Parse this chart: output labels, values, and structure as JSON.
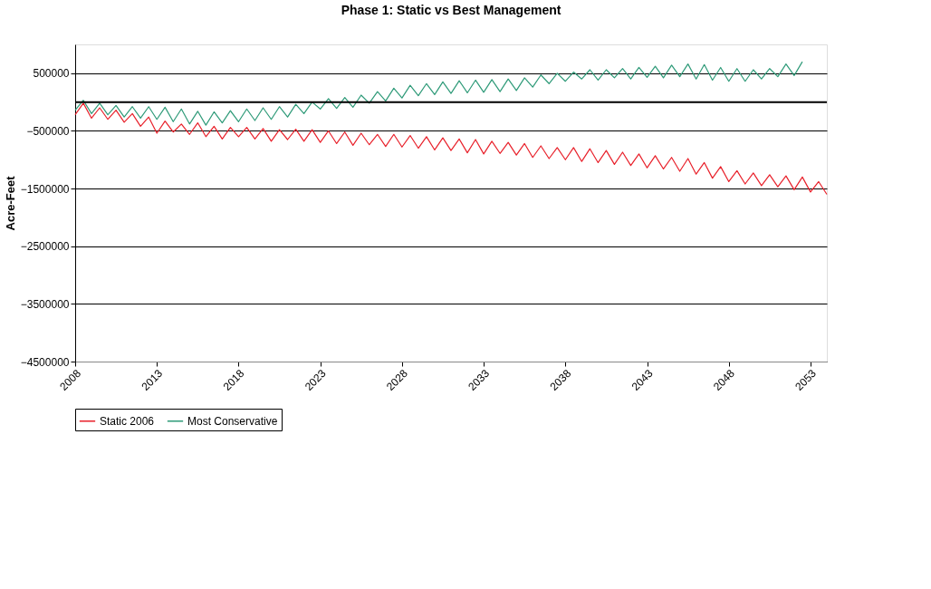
{
  "chart_data": {
    "type": "line",
    "title": "Phase 1:  Static vs Best Management",
    "ylabel": "Acre-Feet",
    "x": [
      2008,
      2008.5,
      2009,
      2009.5,
      2010,
      2010.5,
      2011,
      2011.5,
      2012,
      2012.5,
      2013,
      2013.5,
      2014,
      2014.5,
      2015,
      2015.5,
      2016,
      2016.5,
      2017,
      2017.5,
      2018,
      2018.5,
      2019,
      2019.5,
      2020,
      2020.5,
      2021,
      2021.5,
      2022,
      2022.5,
      2023,
      2023.5,
      2024,
      2024.5,
      2025,
      2025.5,
      2026,
      2026.5,
      2027,
      2027.5,
      2028,
      2028.5,
      2029,
      2029.5,
      2030,
      2030.5,
      2031,
      2031.5,
      2032,
      2032.5,
      2033,
      2033.5,
      2034,
      2034.5,
      2035,
      2035.5,
      2036,
      2036.5,
      2037,
      2037.5,
      2038,
      2038.5,
      2039,
      2039.5,
      2040,
      2040.5,
      2041,
      2041.5,
      2042,
      2042.5,
      2043,
      2043.5,
      2044,
      2044.5,
      2045,
      2045.5,
      2046,
      2046.5,
      2047,
      2047.5,
      2048,
      2048.5,
      2049,
      2049.5,
      2050,
      2050.5,
      2051,
      2051.5,
      2052,
      2052.5,
      2053,
      2053.5,
      2054
    ],
    "series": [
      {
        "name": "Static 2006",
        "color": "#e8202a",
        "values": [
          -220000,
          -20000,
          -280000,
          -100000,
          -300000,
          -140000,
          -350000,
          -200000,
          -420000,
          -260000,
          -540000,
          -330000,
          -520000,
          -380000,
          -560000,
          -360000,
          -600000,
          -420000,
          -640000,
          -440000,
          -600000,
          -440000,
          -640000,
          -460000,
          -680000,
          -480000,
          -650000,
          -470000,
          -680000,
          -480000,
          -700000,
          -500000,
          -720000,
          -520000,
          -750000,
          -540000,
          -740000,
          -560000,
          -770000,
          -560000,
          -780000,
          -580000,
          -800000,
          -600000,
          -830000,
          -620000,
          -840000,
          -640000,
          -880000,
          -650000,
          -900000,
          -680000,
          -890000,
          -700000,
          -920000,
          -720000,
          -960000,
          -760000,
          -980000,
          -790000,
          -1000000,
          -790000,
          -1030000,
          -810000,
          -1050000,
          -840000,
          -1080000,
          -870000,
          -1100000,
          -900000,
          -1140000,
          -930000,
          -1160000,
          -960000,
          -1200000,
          -980000,
          -1250000,
          -1050000,
          -1320000,
          -1120000,
          -1380000,
          -1190000,
          -1420000,
          -1230000,
          -1450000,
          -1260000,
          -1470000,
          -1280000,
          -1520000,
          -1300000,
          -1560000,
          -1380000,
          -1600000
        ]
      },
      {
        "name": "Most Conservative",
        "color": "#2e9a78",
        "values": [
          -140000,
          30000,
          -200000,
          -20000,
          -220000,
          -60000,
          -260000,
          -80000,
          -280000,
          -80000,
          -300000,
          -90000,
          -340000,
          -120000,
          -380000,
          -160000,
          -400000,
          -170000,
          -360000,
          -150000,
          -340000,
          -120000,
          -320000,
          -100000,
          -300000,
          -80000,
          -260000,
          -40000,
          -200000,
          0,
          -120000,
          60000,
          -110000,
          80000,
          -90000,
          120000,
          -20000,
          180000,
          20000,
          240000,
          70000,
          290000,
          110000,
          320000,
          130000,
          350000,
          150000,
          370000,
          160000,
          380000,
          170000,
          390000,
          180000,
          400000,
          200000,
          420000,
          260000,
          470000,
          320000,
          500000,
          360000,
          520000,
          400000,
          560000,
          380000,
          560000,
          420000,
          580000,
          400000,
          600000,
          430000,
          620000,
          420000,
          640000,
          440000,
          660000,
          400000,
          650000,
          380000,
          600000,
          360000,
          580000,
          360000,
          560000,
          400000,
          580000,
          440000,
          660000,
          460000,
          700000,
          null,
          null,
          null
        ]
      }
    ],
    "xlim": [
      2008,
      2054
    ],
    "xticks": [
      2008,
      2013,
      2018,
      2023,
      2028,
      2033,
      2038,
      2043,
      2048,
      2053
    ],
    "ylim": [
      -4500000,
      1000000
    ],
    "yticks": [
      -4500000,
      -3500000,
      -2500000,
      -1500000,
      -500000,
      500000
    ],
    "ref_lines": [
      {
        "axis": "y",
        "value": 0,
        "color": "#000000"
      }
    ],
    "grid": "y",
    "legend": "bottom",
    "line_style": "solid",
    "marker": "none"
  }
}
